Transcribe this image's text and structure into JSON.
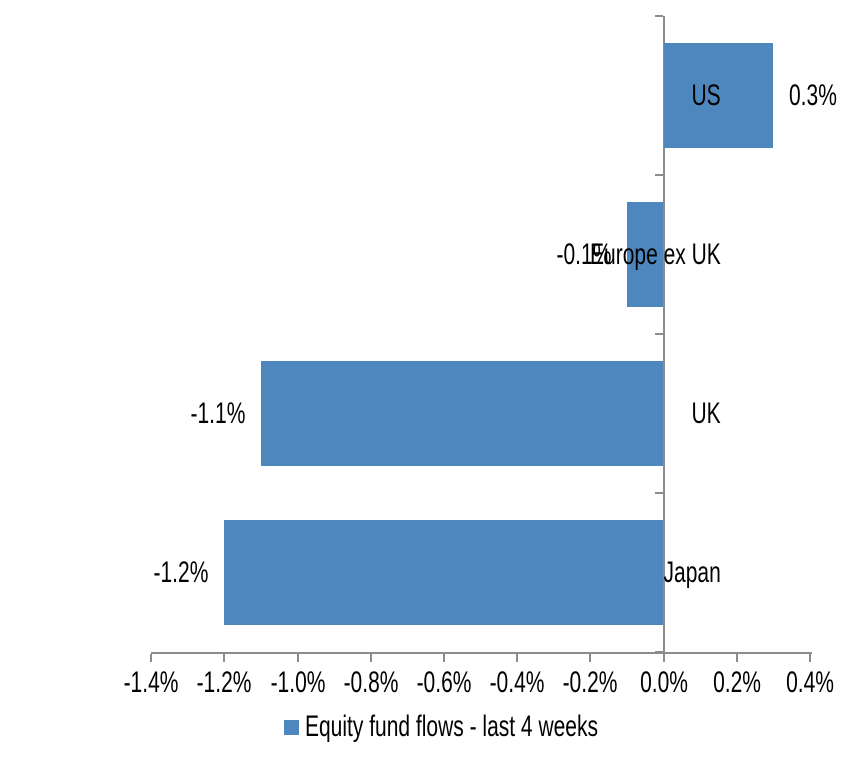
{
  "chart_data": {
    "type": "bar",
    "orientation": "horizontal",
    "title": "",
    "xlabel": "",
    "ylabel": "",
    "units": "percent",
    "categories": [
      "US",
      "Europe ex UK",
      "UK",
      "Japan"
    ],
    "series": [
      {
        "name": "Equity fund flows - last 4 weeks",
        "values": [
          0.3,
          -0.1,
          -1.1,
          -1.2
        ],
        "value_labels": [
          "0.3%",
          "-0.1%",
          "-1.1%",
          "-1.2%"
        ]
      }
    ],
    "x_ticks": [
      -1.4,
      -1.2,
      -1.0,
      -0.8,
      -0.6,
      -0.4,
      -0.2,
      0.0,
      0.2,
      0.4
    ],
    "x_tick_labels": [
      "-1.4%",
      "-1.2%",
      "-1.0%",
      "-0.8%",
      "-0.6%",
      "-0.4%",
      "-0.2%",
      "0.0%",
      "0.2%",
      "0.4%"
    ],
    "xlim": [
      -1.4,
      0.4
    ],
    "grid": false,
    "legend_position": "bottom",
    "legend_label": "Equity fund flows - last 4 weeks",
    "colors": {
      "bar": "#4E86BE",
      "axis": "#8C8C8C",
      "text": "#000000",
      "background": "#FFFFFF"
    }
  }
}
